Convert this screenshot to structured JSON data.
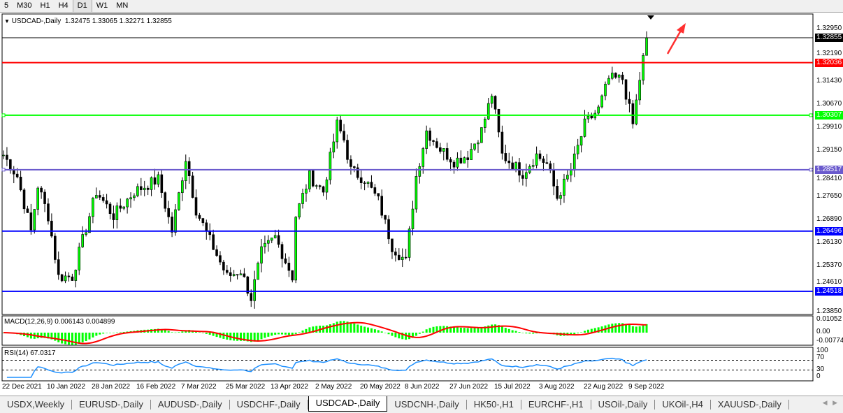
{
  "timeframes": [
    "5",
    "M30",
    "H1",
    "H4",
    "D1",
    "W1",
    "MN"
  ],
  "selected_timeframe": "D1",
  "chart": {
    "symbol_label": "USDCAD-,Daily",
    "ohlc": "1.32475 1.33065 1.32271 1.32855",
    "open": 1.32475,
    "high": 1.33065,
    "low": 1.32271,
    "close": 1.32855,
    "bull_color": "#00ff00",
    "bear_color": "#000000"
  },
  "price_axis": [
    "1.32950",
    "1.32190",
    "1.31430",
    "1.30670",
    "1.29910",
    "1.29150",
    "1.28410",
    "1.27650",
    "1.26890",
    "1.26130",
    "1.25370",
    "1.24610",
    "1.23850"
  ],
  "levels": [
    {
      "price": "1.32855",
      "color": "#000000",
      "label_bg": "#000000"
    },
    {
      "price": "1.32036",
      "color": "#ff0000",
      "label_bg": "#ff0000"
    },
    {
      "price": "1.30307",
      "color": "#00ff00",
      "label_bg": "#00ff00"
    },
    {
      "price": "1.28517",
      "color": "#6a5acd",
      "label_bg": "#6a5acd"
    },
    {
      "price": "1.26496",
      "color": "#0000ff",
      "label_bg": "#0000ff"
    },
    {
      "price": "1.24518",
      "color": "#0000ff",
      "label_bg": "#0000ff"
    }
  ],
  "price_path": [
    [
      0,
      1.29
    ],
    [
      4,
      1.283
    ],
    [
      8,
      1.265
    ],
    [
      10,
      1.28
    ],
    [
      13,
      1.27
    ],
    [
      16,
      1.25
    ],
    [
      20,
      1.25
    ],
    [
      23,
      1.262
    ],
    [
      27,
      1.278
    ],
    [
      32,
      1.27
    ],
    [
      38,
      1.278
    ],
    [
      45,
      1.282
    ],
    [
      49,
      1.265
    ],
    [
      53,
      1.289
    ],
    [
      56,
      1.272
    ],
    [
      60,
      1.262
    ],
    [
      65,
      1.25
    ],
    [
      69,
      1.252
    ],
    [
      72,
      1.243
    ],
    [
      75,
      1.258
    ],
    [
      79,
      1.263
    ],
    [
      84,
      1.25
    ],
    [
      85,
      1.27
    ],
    [
      89,
      1.283
    ],
    [
      93,
      1.278
    ],
    [
      97,
      1.3
    ],
    [
      99,
      1.295
    ],
    [
      101,
      1.285
    ],
    [
      105,
      1.282
    ],
    [
      109,
      1.275
    ],
    [
      113,
      1.26
    ],
    [
      117,
      1.255
    ],
    [
      120,
      1.283
    ],
    [
      123,
      1.298
    ],
    [
      127,
      1.292
    ],
    [
      131,
      1.288
    ],
    [
      135,
      1.29
    ],
    [
      139,
      1.298
    ],
    [
      142,
      1.31
    ],
    [
      145,
      1.29
    ],
    [
      151,
      1.284
    ],
    [
      155,
      1.29
    ],
    [
      158,
      1.287
    ],
    [
      161,
      1.276
    ],
    [
      165,
      1.285
    ],
    [
      169,
      1.3
    ],
    [
      173,
      1.305
    ],
    [
      176,
      1.315
    ],
    [
      180,
      1.315
    ],
    [
      183,
      1.3
    ],
    [
      185,
      1.315
    ],
    [
      187,
      1.3285
    ]
  ],
  "macd": {
    "label": "MACD(12,26,9) 0.006143 0.004899",
    "axis": [
      "0.01052",
      "0.00",
      "-0.00774"
    ],
    "hist_color": "#00ff00",
    "signal_color": "#ff0000"
  },
  "rsi": {
    "label": "RSI(14) 67.0317",
    "axis": [
      "100",
      "70",
      "30",
      "0"
    ],
    "line_color": "#1e90ff"
  },
  "dates": [
    "22 Dec 2021",
    "10 Jan 2022",
    "28 Jan 2022",
    "16 Feb 2022",
    "7 Mar 2022",
    "25 Mar 2022",
    "13 Apr 2022",
    "2 May 2022",
    "20 May 2022",
    "8 Jun 2022",
    "27 Jun 2022",
    "15 Jul 2022",
    "3 Aug 2022",
    "22 Aug 2022",
    "9 Sep 2022"
  ],
  "tabs": [
    "USDX,Weekly",
    "EURUSD-,Daily",
    "AUDUSD-,Daily",
    "USDCHF-,Daily",
    "USDCAD-,Daily",
    "USDCNH-,Daily",
    "HK50-,H1",
    "EURCHF-,H1",
    "USOil-,Daily",
    "UKOil-,H4",
    "XAUUSD-,Daily"
  ],
  "active_tab": "USDCAD-,Daily",
  "annotation_arrow_color": "#ff3030"
}
